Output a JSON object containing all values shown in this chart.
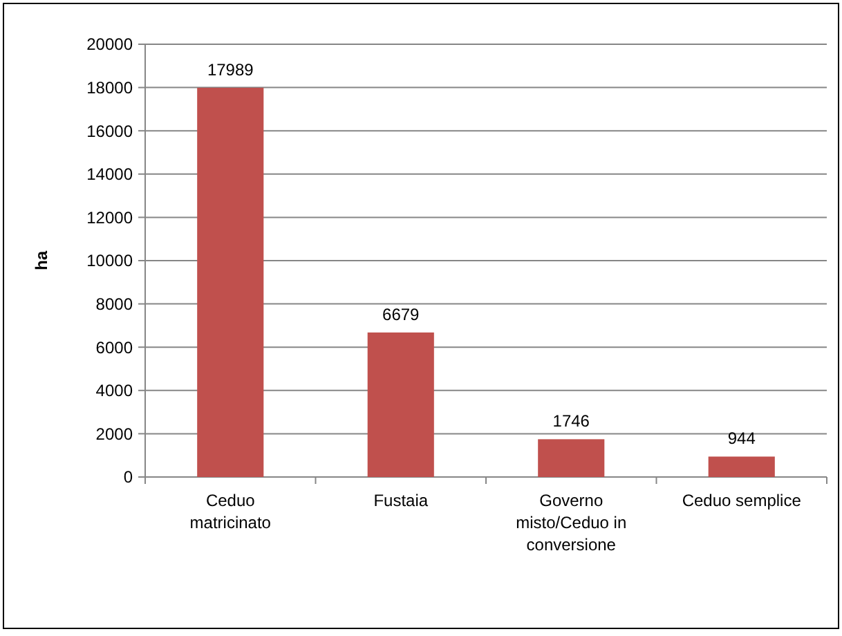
{
  "chart_data": {
    "type": "bar",
    "ylabel": "ha",
    "categories": [
      "Ceduo matricinato",
      "Fustaia",
      "Governo misto/Ceduo in conversione",
      "Ceduo semplice"
    ],
    "values": [
      17989,
      6679,
      1746,
      944
    ],
    "color": "#c0504d",
    "ylim": [
      0,
      20000
    ],
    "yticks": [
      0,
      2000,
      4000,
      6000,
      8000,
      10000,
      12000,
      14000,
      16000,
      18000,
      20000
    ],
    "grid": "y",
    "data_labels": true
  }
}
